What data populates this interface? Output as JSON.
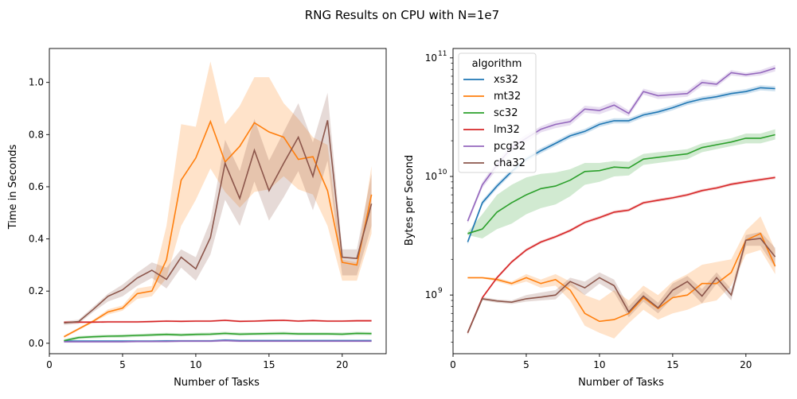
{
  "suptitle": "RNG Results on CPU with N=1e7",
  "chart_data": [
    {
      "type": "line",
      "xlabel": "Number of Tasks",
      "ylabel": "Time in Seconds",
      "xlim": [
        0,
        23
      ],
      "ylim": [
        -0.04,
        1.13
      ],
      "xticks": [
        0,
        5,
        10,
        15,
        20
      ],
      "yticks": [
        0.0,
        0.2,
        0.4,
        0.6,
        0.8,
        1.0
      ],
      "ytick_labels": [
        "0.0",
        "0.2",
        "0.4",
        "0.6",
        "0.8",
        "1.0"
      ],
      "yscale": "linear",
      "grid": false,
      "x": [
        1,
        2,
        3,
        4,
        5,
        6,
        7,
        8,
        9,
        10,
        11,
        12,
        13,
        14,
        15,
        16,
        17,
        18,
        19,
        20,
        21,
        22
      ],
      "series": [
        {
          "name": "xs32",
          "color": "#1f77b4",
          "band": 0.004,
          "values": [
            0.008,
            0.008,
            0.008,
            0.008,
            0.008,
            0.008,
            0.008,
            0.009,
            0.009,
            0.009,
            0.009,
            0.012,
            0.01,
            0.01,
            0.01,
            0.01,
            0.01,
            0.01,
            0.01,
            0.01,
            0.01,
            0.01
          ]
        },
        {
          "name": "mt32",
          "color": "#ff7f0e",
          "values": [
            0.025,
            0.055,
            0.085,
            0.12,
            0.135,
            0.19,
            0.2,
            0.32,
            0.625,
            0.71,
            0.85,
            0.695,
            0.755,
            0.845,
            0.81,
            0.79,
            0.705,
            0.715,
            0.585,
            0.31,
            0.3,
            0.57
          ],
          "lower": [
            0.02,
            0.05,
            0.08,
            0.11,
            0.125,
            0.17,
            0.18,
            0.25,
            0.45,
            0.55,
            0.67,
            0.58,
            0.52,
            0.58,
            0.59,
            0.64,
            0.59,
            0.57,
            0.45,
            0.24,
            0.24,
            0.42
          ],
          "upper": [
            0.03,
            0.06,
            0.09,
            0.13,
            0.145,
            0.21,
            0.22,
            0.45,
            0.84,
            0.83,
            1.08,
            0.84,
            0.91,
            1.02,
            1.02,
            0.92,
            0.86,
            0.79,
            0.76,
            0.32,
            0.31,
            0.68
          ]
        },
        {
          "name": "sc32",
          "color": "#2ca02c",
          "band": 0.006,
          "values": [
            0.01,
            0.022,
            0.025,
            0.027,
            0.028,
            0.03,
            0.032,
            0.034,
            0.032,
            0.034,
            0.035,
            0.038,
            0.035,
            0.036,
            0.037,
            0.038,
            0.036,
            0.036,
            0.036,
            0.035,
            0.038,
            0.037
          ]
        },
        {
          "name": "lm32",
          "color": "#d62728",
          "band": 0.004,
          "values": [
            0.08,
            0.081,
            0.081,
            0.082,
            0.082,
            0.082,
            0.083,
            0.085,
            0.084,
            0.085,
            0.085,
            0.088,
            0.084,
            0.085,
            0.087,
            0.088,
            0.085,
            0.087,
            0.085,
            0.085,
            0.086,
            0.086
          ]
        },
        {
          "name": "pcg32",
          "color": "#9467bd",
          "band": 0.004,
          "values": [
            0.006,
            0.006,
            0.006,
            0.006,
            0.006,
            0.007,
            0.007,
            0.007,
            0.008,
            0.008,
            0.008,
            0.01,
            0.008,
            0.008,
            0.008,
            0.008,
            0.008,
            0.008,
            0.008,
            0.008,
            0.008,
            0.008
          ]
        },
        {
          "name": "cha32",
          "color": "#8c564b",
          "values": [
            0.078,
            0.083,
            0.13,
            0.18,
            0.205,
            0.25,
            0.28,
            0.245,
            0.33,
            0.285,
            0.405,
            0.69,
            0.555,
            0.74,
            0.585,
            0.69,
            0.79,
            0.64,
            0.855,
            0.33,
            0.325,
            0.535
          ],
          "lower": [
            0.07,
            0.075,
            0.12,
            0.16,
            0.18,
            0.22,
            0.25,
            0.21,
            0.29,
            0.24,
            0.34,
            0.55,
            0.45,
            0.62,
            0.47,
            0.56,
            0.66,
            0.51,
            0.7,
            0.26,
            0.26,
            0.45
          ],
          "upper": [
            0.085,
            0.09,
            0.14,
            0.19,
            0.225,
            0.27,
            0.31,
            0.29,
            0.36,
            0.33,
            0.47,
            0.78,
            0.66,
            0.86,
            0.7,
            0.81,
            0.92,
            0.77,
            0.96,
            0.36,
            0.36,
            0.65
          ]
        }
      ]
    },
    {
      "type": "line",
      "xlabel": "Number of Tasks",
      "ylabel": "Bytes per Second",
      "xlim": [
        0,
        23
      ],
      "ylim": [
        320000000.0,
        120000000000.0
      ],
      "yscale": "log",
      "xticks": [
        0,
        5,
        10,
        15,
        20
      ],
      "yticks": [
        1000000000.0,
        10000000000.0,
        100000000000.0
      ],
      "ytick_labels": [
        "10",
        "10",
        "10"
      ],
      "ytick_exponents": [
        "9",
        "10",
        "11"
      ],
      "grid": false,
      "legend": {
        "title": "algorithm",
        "placement": "upper left"
      },
      "x": [
        1,
        2,
        3,
        4,
        5,
        6,
        7,
        8,
        9,
        10,
        11,
        12,
        13,
        14,
        15,
        16,
        17,
        18,
        19,
        20,
        21,
        22
      ],
      "series": [
        {
          "name": "xs32",
          "color": "#1f77b4",
          "band": 0.05,
          "values": [
            2800000000.0,
            6000000000.0,
            8300000000.0,
            11000000000.0,
            14000000000.0,
            16500000000.0,
            19000000000.0,
            22000000000.0,
            24000000000.0,
            27500000000.0,
            29500000000.0,
            29500000000.0,
            33000000000.0,
            35000000000.0,
            38000000000.0,
            42000000000.0,
            45000000000.0,
            47000000000.0,
            50000000000.0,
            52000000000.0,
            56000000000.0,
            55000000000.0
          ]
        },
        {
          "name": "mt32",
          "color": "#ff7f0e",
          "values": [
            1400000000.0,
            1400000000.0,
            1350000000.0,
            1250000000.0,
            1400000000.0,
            1250000000.0,
            1350000000.0,
            1100000000.0,
            700000000.0,
            600000000.0,
            620000000.0,
            700000000.0,
            950000000.0,
            770000000.0,
            950000000.0,
            1000000000.0,
            1250000000.0,
            1250000000.0,
            1550000000.0,
            2900000000.0,
            3300000000.0,
            1750000000.0
          ],
          "lower": [
            1380000000.0,
            1380000000.0,
            1300000000.0,
            1200000000.0,
            1300000000.0,
            1150000000.0,
            1200000000.0,
            900000000.0,
            550000000.0,
            480000000.0,
            430000000.0,
            580000000.0,
            750000000.0,
            620000000.0,
            700000000.0,
            750000000.0,
            850000000.0,
            900000000.0,
            1200000000.0,
            2200000000.0,
            2400000000.0,
            1500000000.0
          ],
          "upper": [
            1420000000.0,
            1420000000.0,
            1400000000.0,
            1300000000.0,
            1500000000.0,
            1350000000.0,
            1500000000.0,
            1300000000.0,
            1000000000.0,
            900000000.0,
            1100000000.0,
            900000000.0,
            1200000000.0,
            1000000000.0,
            1300000000.0,
            1500000000.0,
            1800000000.0,
            1900000000.0,
            2000000000.0,
            3500000000.0,
            4600000000.0,
            2400000000.0
          ]
        },
        {
          "name": "sc32",
          "color": "#2ca02c",
          "values": [
            3300000000.0,
            3600000000.0,
            5000000000.0,
            6000000000.0,
            7000000000.0,
            7900000000.0,
            8300000000.0,
            9300000000.0,
            11000000000.0,
            11200000000.0,
            12000000000.0,
            11800000000.0,
            14000000000.0,
            14500000000.0,
            15000000000.0,
            15500000000.0,
            17500000000.0,
            18500000000.0,
            19500000000.0,
            21000000000.0,
            21000000000.0,
            22500000000.0
          ],
          "lower": [
            3200000000.0,
            3000000000.0,
            3600000000.0,
            4000000000.0,
            4800000000.0,
            5400000000.0,
            5800000000.0,
            6800000000.0,
            8500000000.0,
            9000000000.0,
            10000000000.0,
            10200000000.0,
            12500000000.0,
            13000000000.0,
            13500000000.0,
            14000000000.0,
            16000000000.0,
            17000000000.0,
            18000000000.0,
            19000000000.0,
            19000000000.0,
            20500000000.0
          ],
          "upper": [
            3400000000.0,
            4800000000.0,
            7000000000.0,
            8500000000.0,
            9800000000.0,
            10500000000.0,
            10800000000.0,
            11500000000.0,
            13000000000.0,
            13000000000.0,
            13500000000.0,
            13300000000.0,
            15500000000.0,
            16000000000.0,
            16500000000.0,
            17000000000.0,
            19000000000.0,
            20000000000.0,
            21000000000.0,
            23000000000.0,
            23000000000.0,
            25000000000.0
          ]
        },
        {
          "name": "lm32",
          "color": "#d62728",
          "band": 0.03,
          "values": [
            480000000.0,
            950000000.0,
            1400000000.0,
            1900000000.0,
            2400000000.0,
            2800000000.0,
            3100000000.0,
            3500000000.0,
            4100000000.0,
            4500000000.0,
            5000000000.0,
            5200000000.0,
            6000000000.0,
            6300000000.0,
            6600000000.0,
            7000000000.0,
            7600000000.0,
            8000000000.0,
            8600000000.0,
            9000000000.0,
            9400000000.0,
            9800000000.0
          ]
        },
        {
          "name": "pcg32",
          "color": "#9467bd",
          "values": [
            4200000000.0,
            8500000000.0,
            12500000000.0,
            17500000000.0,
            21000000000.0,
            25000000000.0,
            27500000000.0,
            29000000000.0,
            37000000000.0,
            36000000000.0,
            40000000000.0,
            34000000000.0,
            52000000000.0,
            48000000000.0,
            49000000000.0,
            50000000000.0,
            62000000000.0,
            60000000000.0,
            75000000000.0,
            72000000000.0,
            75000000000.0,
            82000000000.0
          ],
          "lower": [
            4000000000.0,
            8000000000.0,
            11500000000.0,
            16000000000.0,
            19500000000.0,
            23500000000.0,
            25500000000.0,
            27000000000.0,
            34500000000.0,
            33500000000.0,
            37000000000.0,
            32000000000.0,
            49000000000.0,
            45000000000.0,
            46000000000.0,
            47000000000.0,
            58000000000.0,
            57000000000.0,
            71000000000.0,
            69000000000.0,
            71000000000.0,
            77000000000.0
          ],
          "upper": [
            4400000000.0,
            9000000000.0,
            13500000000.0,
            19000000000.0,
            22500000000.0,
            26500000000.0,
            29500000000.0,
            31000000000.0,
            39500000000.0,
            38500000000.0,
            43000000000.0,
            36000000000.0,
            55000000000.0,
            51000000000.0,
            52000000000.0,
            53000000000.0,
            66000000000.0,
            63000000000.0,
            79000000000.0,
            75000000000.0,
            79000000000.0,
            87000000000.0
          ]
        },
        {
          "name": "cha32",
          "color": "#8c564b",
          "values": [
            480000000.0,
            930000000.0,
            890000000.0,
            870000000.0,
            930000000.0,
            960000000.0,
            1000000000.0,
            1300000000.0,
            1150000000.0,
            1400000000.0,
            1200000000.0,
            720000000.0,
            980000000.0,
            780000000.0,
            1100000000.0,
            1300000000.0,
            980000000.0,
            1400000000.0,
            1000000000.0,
            2900000000.0,
            3000000000.0,
            2100000000.0
          ],
          "lower": [
            460000000.0,
            900000000.0,
            860000000.0,
            840000000.0,
            880000000.0,
            900000000.0,
            920000000.0,
            1200000000.0,
            1000000000.0,
            1250000000.0,
            1050000000.0,
            650000000.0,
            880000000.0,
            700000000.0,
            950000000.0,
            1150000000.0,
            850000000.0,
            1250000000.0,
            900000000.0,
            2600000000.0,
            2600000000.0,
            1700000000.0
          ],
          "upper": [
            500000000.0,
            960000000.0,
            920000000.0,
            900000000.0,
            1000000000.0,
            1050000000.0,
            1100000000.0,
            1400000000.0,
            1300000000.0,
            1550000000.0,
            1350000000.0,
            800000000.0,
            1080000000.0,
            860000000.0,
            1250000000.0,
            1450000000.0,
            1120000000.0,
            1550000000.0,
            1120000000.0,
            3200000000.0,
            3400000000.0,
            2500000000.0
          ]
        }
      ]
    }
  ]
}
